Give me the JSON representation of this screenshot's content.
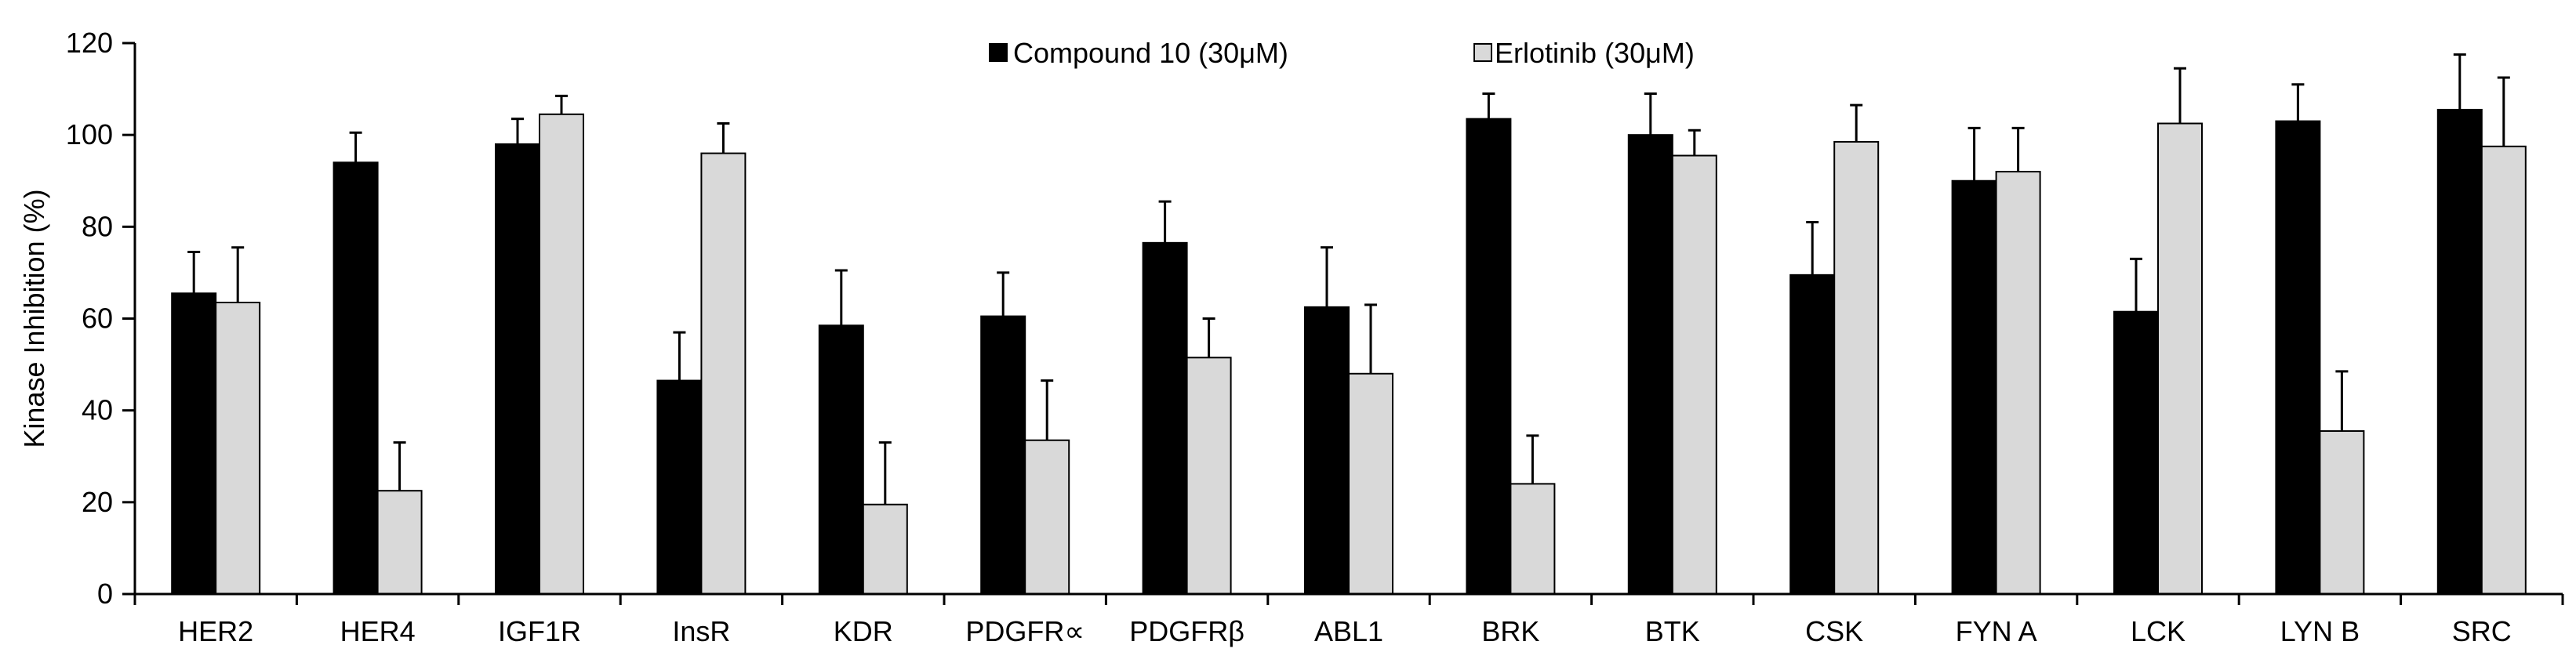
{
  "colors": {
    "series_1": "#000000",
    "series_2": "#d9d9d9",
    "axis": "#000000"
  },
  "chart_data": {
    "type": "bar",
    "title": "",
    "xlabel": "",
    "ylabel": "Kinase Inhibition (%)",
    "ylim": [
      0,
      120
    ],
    "yticks": [
      "0",
      "20",
      "40",
      "60",
      "80",
      "100",
      "120"
    ],
    "grid": false,
    "legend_position": "top-center",
    "categories": [
      "HER2",
      "HER4",
      "IGF1R",
      "InsR",
      "KDR",
      "PDGFR∝",
      "PDGFRβ",
      "ABL1",
      "BRK",
      "BTK",
      "CSK",
      "FYN A",
      "LCK",
      "LYN B",
      "SRC"
    ],
    "series": [
      {
        "name": "Compound 10 (30μM)",
        "values": [
          65.5,
          94,
          98,
          46.5,
          58.5,
          60.5,
          76.5,
          62.5,
          103.5,
          100,
          69.5,
          90,
          61.5,
          103,
          105.5
        ],
        "errors": [
          9,
          6.5,
          5.5,
          10.5,
          12,
          9.5,
          9,
          13,
          5.5,
          9,
          11.5,
          11.5,
          11.5,
          8,
          12
        ]
      },
      {
        "name": "Erlotinib (30μM)",
        "values": [
          63.5,
          22.5,
          104.5,
          96,
          19.5,
          33.5,
          51.5,
          48,
          24,
          95.5,
          98.5,
          92,
          102.5,
          35.5,
          97.5
        ],
        "errors": [
          12,
          10.5,
          4,
          6.5,
          13.5,
          13,
          8.5,
          15,
          10.5,
          5.5,
          8,
          9.5,
          12,
          13,
          15
        ]
      }
    ]
  }
}
